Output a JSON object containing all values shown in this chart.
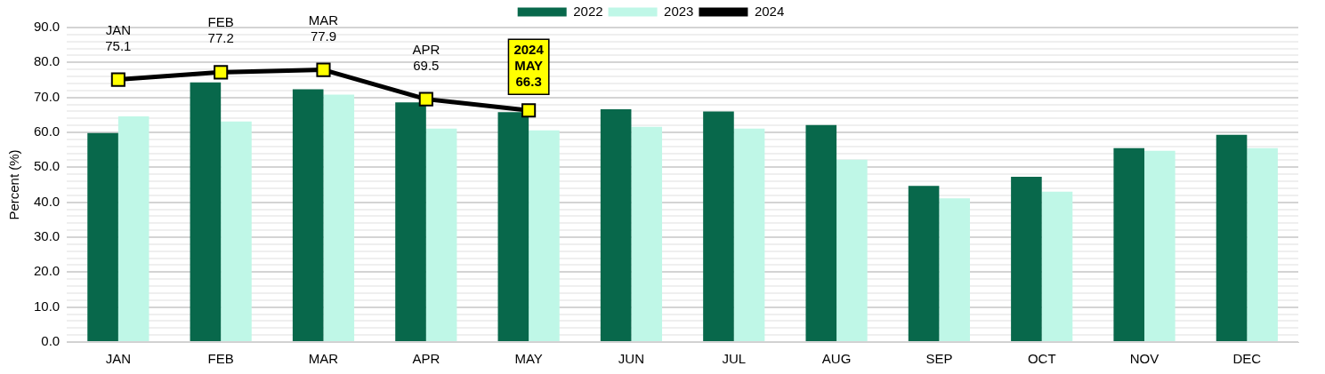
{
  "chart_data": {
    "type": "bar",
    "ylabel": "Percent (%)",
    "categories": [
      "JAN",
      "FEB",
      "MAR",
      "APR",
      "MAY",
      "JUN",
      "JUL",
      "AUG",
      "SEP",
      "OCT",
      "NOV",
      "DEC"
    ],
    "series": [
      {
        "name": "2022",
        "color": "#08684b",
        "values": [
          59.8,
          74.3,
          72.3,
          68.6,
          65.8,
          66.6,
          66.0,
          62.1,
          44.7,
          47.3,
          55.5,
          59.3
        ]
      },
      {
        "name": "2023",
        "color": "#bff7e7",
        "values": [
          64.6,
          63.1,
          70.8,
          61.1,
          60.6,
          61.6,
          61.1,
          52.2,
          41.1,
          43.0,
          54.7,
          55.5
        ]
      },
      {
        "name": "2024",
        "type": "line",
        "color": "#000000",
        "marker": "square",
        "values": [
          75.1,
          77.2,
          77.9,
          69.5,
          66.3,
          null,
          null,
          null,
          null,
          null,
          null,
          null
        ],
        "value_labels": [
          "JAN\n75.1",
          "FEB\n77.2",
          "MAR\n77.9",
          "APR\n69.5",
          "2024\nMAY\n66.3",
          null,
          null,
          null,
          null,
          null,
          null,
          null
        ]
      }
    ],
    "ylim": [
      0,
      90
    ],
    "yticks": [
      {
        "value": 0,
        "label": "0.0"
      },
      {
        "value": 2,
        "label": null
      },
      {
        "value": 4,
        "label": null
      },
      {
        "value": 6,
        "label": null
      },
      {
        "value": 8,
        "label": null
      },
      {
        "value": 10,
        "label": "10.0"
      },
      {
        "value": 12,
        "label": null
      },
      {
        "value": 14,
        "label": null
      },
      {
        "value": 16,
        "label": null
      },
      {
        "value": 18,
        "label": null
      },
      {
        "value": 20,
        "label": "20.0"
      },
      {
        "value": 22,
        "label": null
      },
      {
        "value": 24,
        "label": null
      },
      {
        "value": 26,
        "label": null
      },
      {
        "value": 28,
        "label": null
      },
      {
        "value": 30,
        "label": "30.0"
      },
      {
        "value": 32,
        "label": null
      },
      {
        "value": 34,
        "label": null
      },
      {
        "value": 36,
        "label": null
      },
      {
        "value": 38,
        "label": null
      },
      {
        "value": 40,
        "label": "40.0"
      },
      {
        "value": 42,
        "label": null
      },
      {
        "value": 44,
        "label": null
      },
      {
        "value": 46,
        "label": null
      },
      {
        "value": 48,
        "label": null
      },
      {
        "value": 50,
        "label": "50.0"
      },
      {
        "value": 52,
        "label": null
      },
      {
        "value": 54,
        "label": null
      },
      {
        "value": 56,
        "label": null
      },
      {
        "value": 58,
        "label": null
      },
      {
        "value": 60,
        "label": "60.0"
      },
      {
        "value": 62,
        "label": null
      },
      {
        "value": 64,
        "label": null
      },
      {
        "value": 66,
        "label": null
      },
      {
        "value": 68,
        "label": null
      },
      {
        "value": 70,
        "label": "70.0"
      },
      {
        "value": 72,
        "label": null
      },
      {
        "value": 74,
        "label": null
      },
      {
        "value": 76,
        "label": null
      },
      {
        "value": 78,
        "label": null
      },
      {
        "value": 80,
        "label": "80.0"
      },
      {
        "value": 82,
        "label": null
      },
      {
        "value": 84,
        "label": null
      },
      {
        "value": 86,
        "label": null
      },
      {
        "value": 88,
        "label": null
      },
      {
        "value": 90,
        "label": "90.0"
      }
    ],
    "grid": "y",
    "legend": "top"
  }
}
